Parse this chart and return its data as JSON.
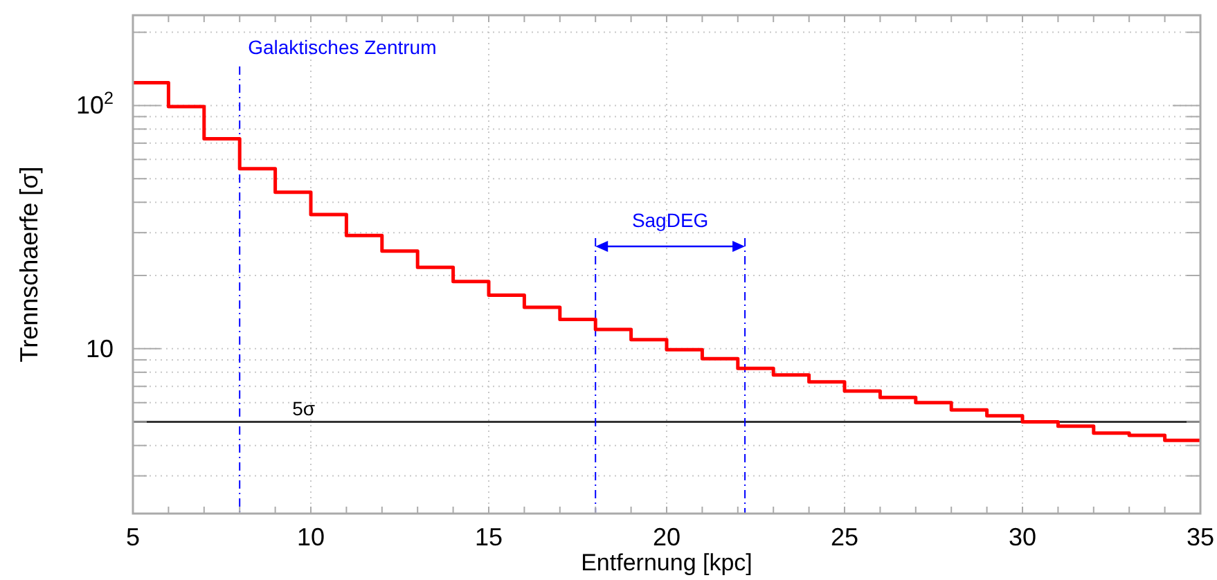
{
  "chart_data": {
    "type": "histogram",
    "xlabel": "Entfernung [kpc]",
    "ylabel": "Trennschaerfe [σ]",
    "bins": [
      5,
      6,
      7,
      8,
      9,
      10,
      11,
      12,
      13,
      14,
      15,
      16,
      17,
      18,
      19,
      20,
      21,
      22,
      23,
      24,
      25,
      26,
      27,
      28,
      29,
      30,
      31,
      32,
      33,
      34,
      35
    ],
    "values": [
      124,
      99,
      73,
      55,
      44,
      35.6,
      29.2,
      25.2,
      21.6,
      18.9,
      16.6,
      14.8,
      13.2,
      12.0,
      10.9,
      9.9,
      9.1,
      8.3,
      7.8,
      7.3,
      6.7,
      6.3,
      6.0,
      5.6,
      5.3,
      5.0,
      4.8,
      4.5,
      4.4,
      4.2
    ],
    "color": "#ff0000",
    "log": "y",
    "grid": true,
    "xlim": [
      5,
      35
    ],
    "xticks": [
      5,
      10,
      15,
      20,
      25,
      30,
      35
    ],
    "ylim": [
      2.1,
      235
    ],
    "yticks": [
      {
        "value": 3,
        "label": null
      },
      {
        "value": 4,
        "label": null
      },
      {
        "value": 5,
        "label": null
      },
      {
        "value": 6,
        "label": null
      },
      {
        "value": 7,
        "label": null
      },
      {
        "value": 8,
        "label": null
      },
      {
        "value": 9,
        "label": null
      },
      {
        "value": 10,
        "label": "10"
      },
      {
        "value": 20,
        "label": null
      },
      {
        "value": 30,
        "label": null
      },
      {
        "value": 40,
        "label": null
      },
      {
        "value": 50,
        "label": null
      },
      {
        "value": 60,
        "label": null
      },
      {
        "value": 70,
        "label": null
      },
      {
        "value": 80,
        "label": null
      },
      {
        "value": 90,
        "label": null
      },
      {
        "value": 100,
        "label": "10$^{2}$"
      },
      {
        "value": 200,
        "label": null
      }
    ],
    "ref_lines": [
      {
        "axis": "x",
        "value": 8,
        "label": "Galaktisches Zentrum",
        "color": "#0000ff",
        "line_style": "dashdot"
      },
      {
        "axis": "y",
        "value": 5,
        "label": "5σ",
        "color": "#333333",
        "line_style": "solid"
      },
      {
        "axis": "x",
        "value": 18,
        "color": "#0000ff",
        "line_style": "dashdot"
      },
      {
        "axis": "x",
        "value": 22.2,
        "color": "#0000ff",
        "line_style": "dashdot"
      }
    ],
    "annotations": [
      "SagDEG"
    ]
  }
}
